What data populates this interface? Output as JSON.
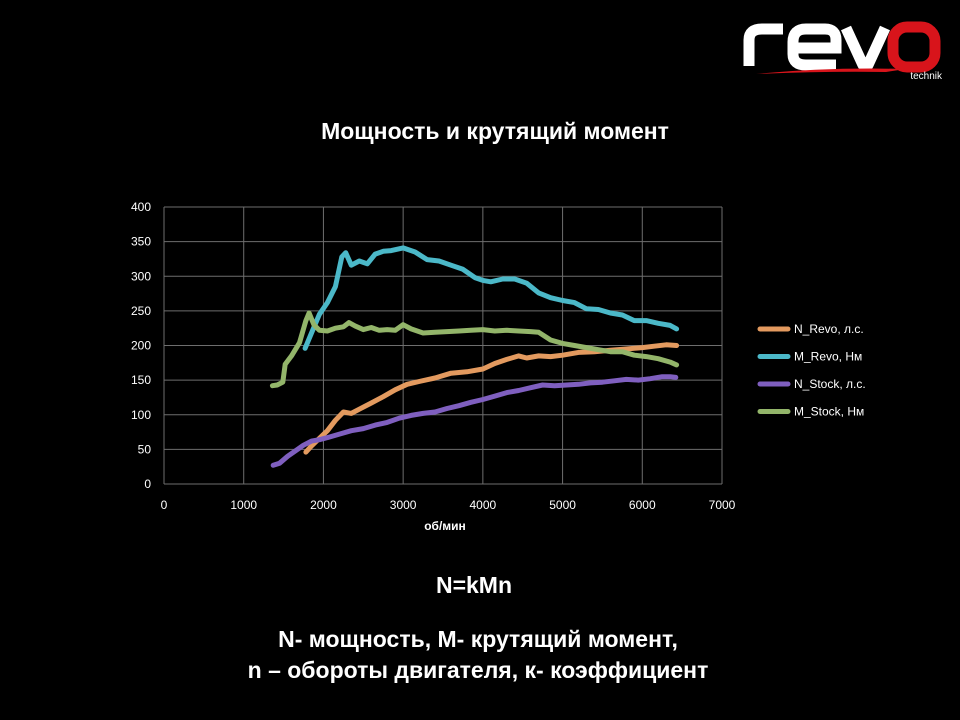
{
  "logo": {
    "word": "revo",
    "sub": "technik"
  },
  "colors": {
    "background": "#000000",
    "grid": "#6e6e6e",
    "logo_white": "#ffffff",
    "logo_red": "#d8141b"
  },
  "chart_data": {
    "type": "line",
    "title": "Мощность и крутящий момент",
    "xlabel": "об/мин",
    "ylabel": "",
    "xlim": [
      0,
      7000
    ],
    "ylim": [
      0,
      400
    ],
    "xticks": [
      "0",
      "1000",
      "2000",
      "3000",
      "4000",
      "5000",
      "6000",
      "7000"
    ],
    "yticks": [
      "0",
      "50",
      "100",
      "150",
      "200",
      "250",
      "300",
      "350",
      "400"
    ],
    "grid": true,
    "legend_position": "right",
    "series": [
      {
        "name": "N_Revo, л.с.",
        "color": "#e39a5f",
        "points": [
          [
            1780,
            46
          ],
          [
            1850,
            55
          ],
          [
            1950,
            66
          ],
          [
            2050,
            77
          ],
          [
            2150,
            92
          ],
          [
            2250,
            104
          ],
          [
            2350,
            102
          ],
          [
            2450,
            108
          ],
          [
            2600,
            117
          ],
          [
            2750,
            126
          ],
          [
            2900,
            136
          ],
          [
            3050,
            144
          ],
          [
            3200,
            148
          ],
          [
            3400,
            153
          ],
          [
            3600,
            160
          ],
          [
            3800,
            162
          ],
          [
            4000,
            166
          ],
          [
            4150,
            174
          ],
          [
            4300,
            180
          ],
          [
            4450,
            185
          ],
          [
            4550,
            182
          ],
          [
            4700,
            185
          ],
          [
            4850,
            184
          ],
          [
            5000,
            186
          ],
          [
            5200,
            190
          ],
          [
            5400,
            191
          ],
          [
            5600,
            193
          ],
          [
            5800,
            195
          ],
          [
            6000,
            197
          ],
          [
            6150,
            199
          ],
          [
            6300,
            201
          ],
          [
            6430,
            200
          ]
        ]
      },
      {
        "name": "M_Revo, Нм",
        "color": "#4bb8c8",
        "points": [
          [
            1770,
            196
          ],
          [
            1850,
            218
          ],
          [
            1950,
            245
          ],
          [
            2050,
            262
          ],
          [
            2150,
            285
          ],
          [
            2230,
            328
          ],
          [
            2280,
            334
          ],
          [
            2350,
            316
          ],
          [
            2450,
            322
          ],
          [
            2550,
            318
          ],
          [
            2650,
            332
          ],
          [
            2750,
            336
          ],
          [
            2850,
            337
          ],
          [
            3000,
            341
          ],
          [
            3150,
            335
          ],
          [
            3300,
            324
          ],
          [
            3450,
            322
          ],
          [
            3600,
            316
          ],
          [
            3750,
            310
          ],
          [
            3900,
            298
          ],
          [
            4000,
            294
          ],
          [
            4100,
            292
          ],
          [
            4250,
            296
          ],
          [
            4400,
            296
          ],
          [
            4550,
            290
          ],
          [
            4700,
            276
          ],
          [
            4850,
            269
          ],
          [
            5000,
            265
          ],
          [
            5150,
            262
          ],
          [
            5300,
            253
          ],
          [
            5450,
            252
          ],
          [
            5600,
            247
          ],
          [
            5750,
            244
          ],
          [
            5900,
            236
          ],
          [
            6050,
            236
          ],
          [
            6200,
            232
          ],
          [
            6350,
            229
          ],
          [
            6430,
            224
          ]
        ]
      },
      {
        "name": "N_Stock, л.с.",
        "color": "#7f5fbf",
        "points": [
          [
            1370,
            27
          ],
          [
            1450,
            30
          ],
          [
            1550,
            40
          ],
          [
            1650,
            48
          ],
          [
            1750,
            56
          ],
          [
            1850,
            62
          ],
          [
            1950,
            64
          ],
          [
            2050,
            67
          ],
          [
            2200,
            72
          ],
          [
            2350,
            77
          ],
          [
            2500,
            80
          ],
          [
            2650,
            85
          ],
          [
            2800,
            89
          ],
          [
            2950,
            95
          ],
          [
            3100,
            99
          ],
          [
            3250,
            102
          ],
          [
            3400,
            104
          ],
          [
            3550,
            109
          ],
          [
            3700,
            113
          ],
          [
            3850,
            118
          ],
          [
            4000,
            122
          ],
          [
            4150,
            127
          ],
          [
            4300,
            132
          ],
          [
            4450,
            135
          ],
          [
            4600,
            139
          ],
          [
            4750,
            143
          ],
          [
            4900,
            142
          ],
          [
            5050,
            143
          ],
          [
            5200,
            144
          ],
          [
            5350,
            146
          ],
          [
            5500,
            147
          ],
          [
            5650,
            149
          ],
          [
            5800,
            151
          ],
          [
            5950,
            150
          ],
          [
            6100,
            152
          ],
          [
            6250,
            155
          ],
          [
            6350,
            155
          ],
          [
            6420,
            154
          ]
        ]
      },
      {
        "name": "M_Stock, Нм",
        "color": "#93b56a",
        "points": [
          [
            1360,
            142
          ],
          [
            1420,
            143
          ],
          [
            1490,
            147
          ],
          [
            1520,
            173
          ],
          [
            1600,
            185
          ],
          [
            1700,
            204
          ],
          [
            1780,
            236
          ],
          [
            1820,
            247
          ],
          [
            1880,
            230
          ],
          [
            1950,
            222
          ],
          [
            2050,
            221
          ],
          [
            2150,
            225
          ],
          [
            2250,
            227
          ],
          [
            2320,
            233
          ],
          [
            2400,
            228
          ],
          [
            2500,
            223
          ],
          [
            2600,
            226
          ],
          [
            2700,
            222
          ],
          [
            2800,
            223
          ],
          [
            2900,
            222
          ],
          [
            3000,
            230
          ],
          [
            3100,
            224
          ],
          [
            3250,
            218
          ],
          [
            3400,
            219
          ],
          [
            3550,
            220
          ],
          [
            3700,
            221
          ],
          [
            3850,
            222
          ],
          [
            4000,
            223
          ],
          [
            4150,
            221
          ],
          [
            4300,
            222
          ],
          [
            4450,
            221
          ],
          [
            4600,
            220
          ],
          [
            4700,
            219
          ],
          [
            4850,
            208
          ],
          [
            5000,
            203
          ],
          [
            5150,
            200
          ],
          [
            5300,
            197
          ],
          [
            5450,
            194
          ],
          [
            5600,
            191
          ],
          [
            5750,
            191
          ],
          [
            5900,
            186
          ],
          [
            6050,
            184
          ],
          [
            6200,
            181
          ],
          [
            6350,
            176
          ],
          [
            6430,
            172
          ]
        ]
      }
    ]
  },
  "formula": "N=kMn",
  "description": {
    "line1": "N- мощность, M- крутящий момент,",
    "line2": "n – обороты двигателя, к- коэффициент"
  }
}
